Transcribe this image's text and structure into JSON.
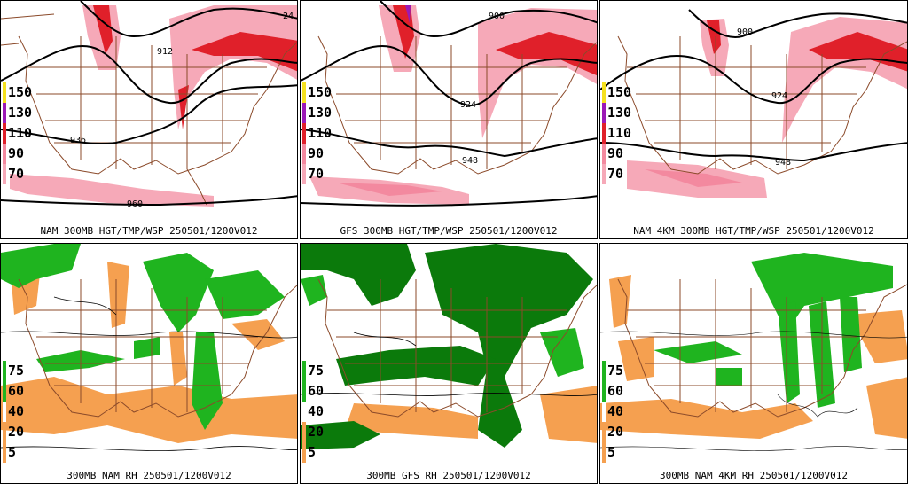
{
  "colors": {
    "coast": "#8b4a2a",
    "contour": "#000000",
    "wind_70": "#f6a9b8",
    "wind_90": "#f3899f",
    "wind_110": "#e0202a",
    "wind_130": "#9b19b6",
    "wind_150": "#f5e11e",
    "rh_low_5": "#f5a050",
    "rh_75": "#1fb41f",
    "rh_dense": "#0b7a0b"
  },
  "wind_legend": {
    "levels": [
      "150",
      "130",
      "110",
      "90",
      "70"
    ],
    "colors": [
      "#f5e11e",
      "#9b19b6",
      "#e0202a",
      "#f3899f",
      "#f6a9b8"
    ]
  },
  "rh_legend": {
    "levels": [
      "75",
      "60",
      "40",
      "20",
      "5"
    ],
    "colors": [
      "#1fb41f",
      "#1fb41f",
      "#ffffff",
      "#f5a050",
      "#f5a050"
    ]
  },
  "panels": [
    {
      "caption": "NAM 300MB HGT/TMP/WSP 250501/1200V012",
      "contour_labels": [
        "24",
        "912",
        "936",
        "960"
      ]
    },
    {
      "caption": "GFS 300MB HGT/TMP/WSP 250501/1200V012",
      "contour_labels": [
        "900",
        "924",
        "948"
      ]
    },
    {
      "caption": "NAM 4KM 300MB HGT/TMP/WSP 250501/1200V012",
      "contour_labels": [
        "900",
        "924",
        "948"
      ]
    },
    {
      "caption": "300MB NAM RH 250501/1200V012"
    },
    {
      "caption": "300MB GFS RH 250501/1200V012"
    },
    {
      "caption": "300MB NAM 4KM RH 250501/1200V012"
    }
  ]
}
